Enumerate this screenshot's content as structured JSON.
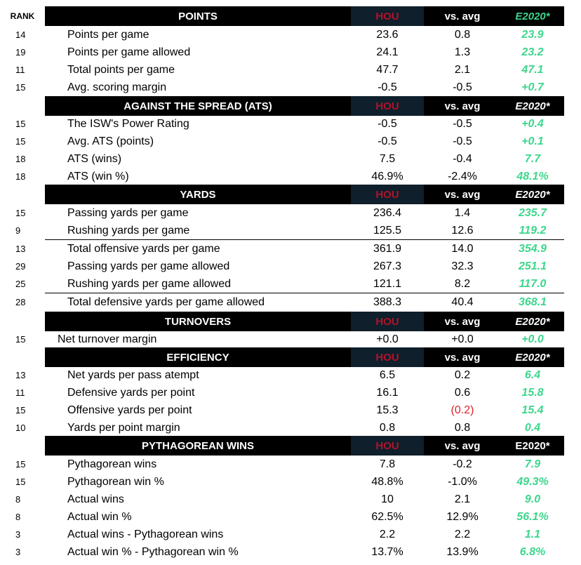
{
  "columns": {
    "rank": "RANK"
  },
  "sections": [
    {
      "title": "POINTS",
      "team": "HOU",
      "vs": "vs. avg",
      "e2020": "E2020*",
      "e2020_color": "#3dd68c",
      "rows": [
        {
          "rank": "14",
          "label": "Points per game",
          "team": "23.6",
          "vs": "0.8",
          "e2020": "23.9"
        },
        {
          "rank": "19",
          "label": "Points per game allowed",
          "team": "24.1",
          "vs": "1.3",
          "e2020": "23.2"
        },
        {
          "rank": "11",
          "label": "Total points per game",
          "team": "47.7",
          "vs": "2.1",
          "e2020": "47.1"
        },
        {
          "rank": "15",
          "label": "Avg. scoring margin",
          "team": "-0.5",
          "vs": "-0.5",
          "e2020": "+0.7"
        }
      ]
    },
    {
      "title": "AGAINST THE SPREAD (ATS)",
      "team": "HOU",
      "vs": "vs. avg",
      "e2020": "E2020*",
      "rows": [
        {
          "rank": "15",
          "label": "The ISW's Power Rating",
          "team": "-0.5",
          "vs": "-0.5",
          "e2020": "+0.4"
        },
        {
          "rank": "15",
          "label": "Avg. ATS (points)",
          "team": "-0.5",
          "vs": "-0.5",
          "e2020": "+0.1"
        },
        {
          "rank": "18",
          "label": "ATS (wins)",
          "team": "7.5",
          "vs": "-0.4",
          "e2020": "7.7"
        },
        {
          "rank": "18",
          "label": "ATS (win %)",
          "team": "46.9%",
          "vs": "-2.4%",
          "e2020": "48.1%"
        }
      ]
    },
    {
      "title": "YARDS",
      "team": "HOU",
      "vs": "vs. avg",
      "e2020": "E2020*",
      "rows": [
        {
          "rank": "15",
          "label": "Passing yards per game",
          "team": "236.4",
          "vs": "1.4",
          "e2020": "235.7"
        },
        {
          "rank": "9",
          "label": "Rushing yards per game",
          "team": "125.5",
          "vs": "12.6",
          "e2020": "119.2"
        },
        {
          "rank": "13",
          "label": "Total offensive yards per game",
          "team": "361.9",
          "vs": "14.0",
          "e2020": "354.9"
        },
        {
          "rank": "29",
          "label": "Passing yards per game allowed",
          "team": "267.3",
          "vs": "32.3",
          "e2020": "251.1"
        },
        {
          "rank": "25",
          "label": "Rushing yards per game allowed",
          "team": "121.1",
          "vs": "8.2",
          "e2020": "117.0"
        },
        {
          "rank": "28",
          "label": "Total defensive yards per game allowed",
          "team": "388.3",
          "vs": "40.4",
          "e2020": "368.1"
        }
      ]
    },
    {
      "title": "TURNOVERS",
      "team": "HOU",
      "vs": "vs. avg",
      "e2020": "E2020*",
      "rows": [
        {
          "rank": "15",
          "label": "Net turnover margin",
          "team": "+0.0",
          "vs": "+0.0",
          "e2020": "+0.0"
        }
      ]
    },
    {
      "title": "EFFICIENCY",
      "team": "HOU",
      "vs": "vs. avg",
      "e2020": "E2020*",
      "rows": [
        {
          "rank": "13",
          "label": "Net yards per pass atempt",
          "team": "6.5",
          "vs": "0.2",
          "e2020": "6.4"
        },
        {
          "rank": "11",
          "label": "Defensive yards per point",
          "team": "16.1",
          "vs": "0.6",
          "e2020": "15.8"
        },
        {
          "rank": "15",
          "label": "Offensive yards per point",
          "team": "15.3",
          "vs": "(0.2)",
          "vs_color": "#e0202e",
          "e2020": "15.4"
        },
        {
          "rank": "10",
          "label": "Yards per point margin",
          "team": "0.8",
          "vs": "0.8",
          "e2020": "0.4"
        }
      ]
    },
    {
      "title": "PYTHAGOREAN WINS",
      "team": "HOU",
      "vs": "vs. avg",
      "e2020": "E2020*",
      "rows": [
        {
          "rank": "15",
          "label": "Pythagorean wins",
          "team": "7.8",
          "vs": "-0.2",
          "e2020": "7.9"
        },
        {
          "rank": "15",
          "label": "Pythagorean win %",
          "team": "48.8%",
          "vs": "-1.0%",
          "e2020": "49.3%"
        },
        {
          "rank": "8",
          "label": "Actual wins",
          "team": "10",
          "vs": "2.1",
          "e2020": "9.0"
        },
        {
          "rank": "8",
          "label": "Actual win %",
          "team": "62.5%",
          "vs": "12.9%",
          "e2020": "56.1%"
        },
        {
          "rank": "3",
          "label": "Actual wins - Pythagorean wins",
          "team": "2.2",
          "vs": "2.2",
          "e2020": "1.1"
        },
        {
          "rank": "3",
          "label": "Actual win % - Pythagorean win %",
          "team": "13.7%",
          "vs": "13.9%",
          "e2020": "6.8%"
        }
      ]
    }
  ]
}
